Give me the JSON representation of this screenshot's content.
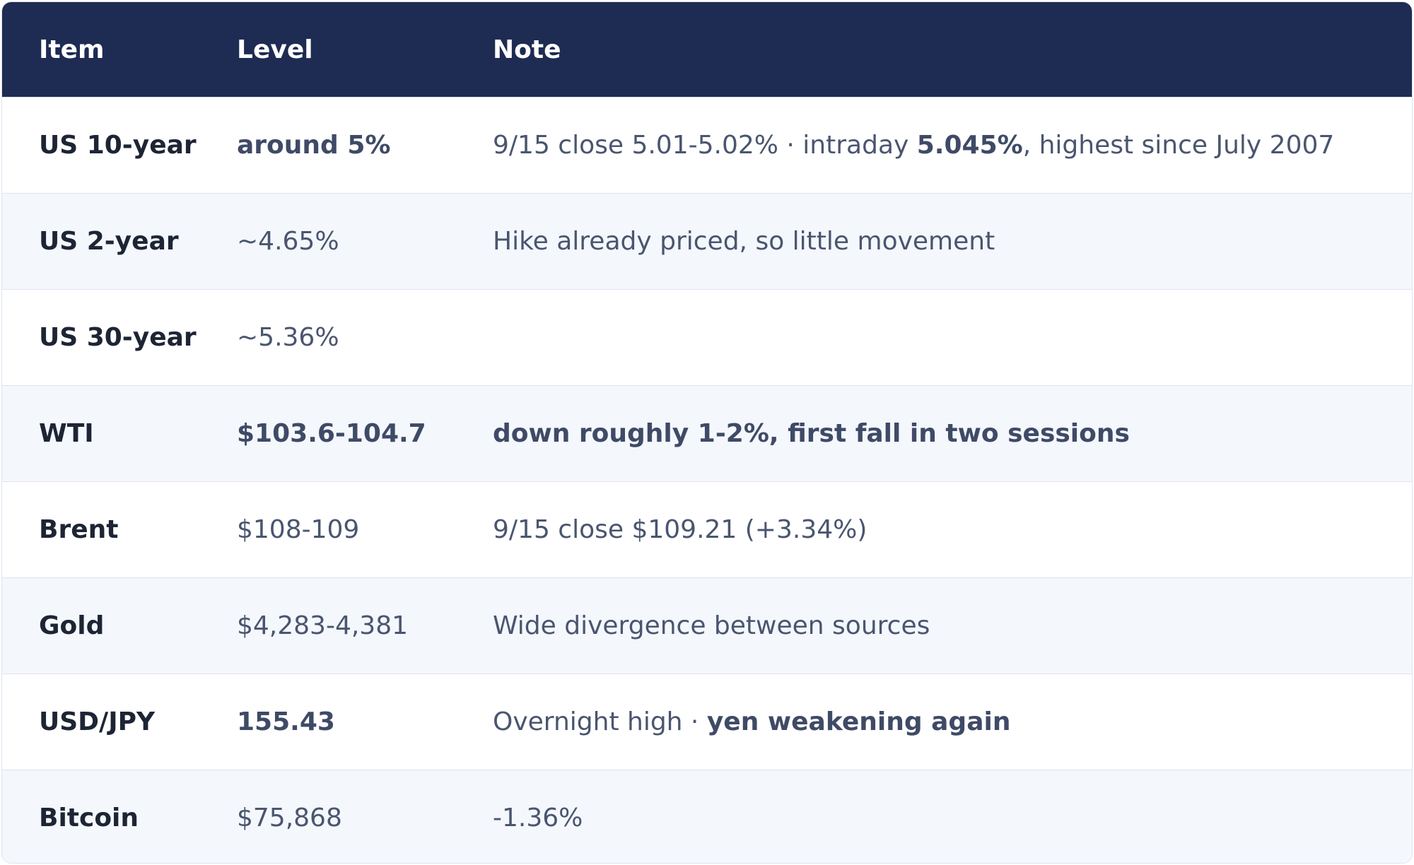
{
  "header": {
    "item": "Item",
    "level": "Level",
    "note": "Note"
  },
  "rows": [
    {
      "item": "US 10-year",
      "level": "around 5%",
      "note_pre": "9/15 close 5.01-5.02% · intraday ",
      "note_bold": "5.045%",
      "note_post": ", highest since July 2007"
    },
    {
      "item": "US 2-year",
      "level": "~4.65%",
      "note": "Hike already priced, so little movement"
    },
    {
      "item": "US 30-year",
      "level": "~5.36%",
      "note": ""
    },
    {
      "item": "WTI",
      "level": "$103.6-104.7",
      "note": "down roughly 1-2%, first fall in two sessions"
    },
    {
      "item": "Brent",
      "level": "$108-109",
      "note": "9/15 close $109.21 (+3.34%)"
    },
    {
      "item": "Gold",
      "level": "$4,283-4,381",
      "note": "Wide divergence between sources"
    },
    {
      "item": "USD/JPY",
      "level": "155.43",
      "note_pre": "Overnight high · ",
      "note_bold": "yen weakening again"
    },
    {
      "item": "Bitcoin",
      "level": "$75,868",
      "note": "-1.36%"
    }
  ],
  "colors": {
    "header_bg": "#1e2b53",
    "row_alt_bg": "#f4f7fc",
    "border": "#dde3ee"
  }
}
